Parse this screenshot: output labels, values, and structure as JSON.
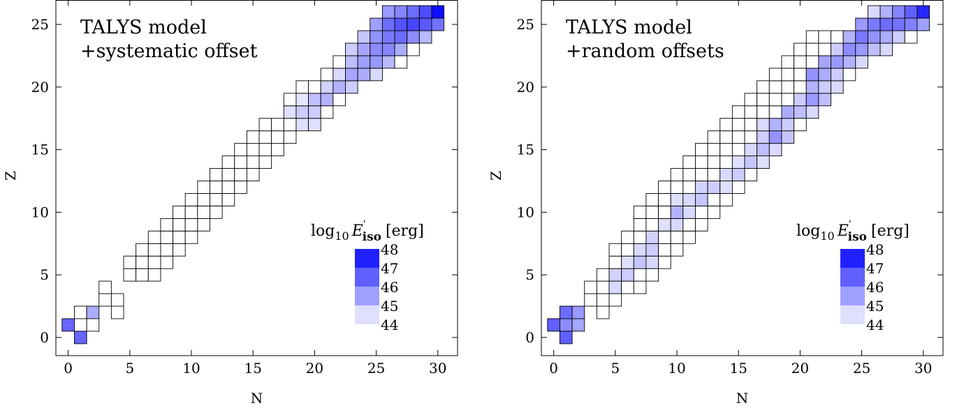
{
  "chart_data": [
    {
      "type": "heatmap",
      "annotations": [
        "TALYS model",
        "+systematic offset"
      ],
      "x_label": "N",
      "y_label": "Z",
      "xlim": [
        -1,
        31.6
      ],
      "ylim": [
        -1.45,
        26.95
      ],
      "xticks": [
        0,
        5,
        10,
        15,
        20,
        25,
        30
      ],
      "yticks": [
        0,
        5,
        10,
        15,
        20,
        25
      ],
      "clim": [
        44,
        48
      ],
      "colorscale": [
        "#ffffff",
        "#0000ff"
      ],
      "colorbar": {
        "label": {
          "base": "log",
          "sub": "10",
          "var": "E",
          "prime": "'",
          "var_sub": "iso",
          "unit": "[erg]"
        },
        "ticks": [
          44,
          45,
          46,
          47,
          48
        ]
      },
      "rows": [
        {
          "z": 0,
          "n": [
            1
          ],
          "values": [
            46.4
          ]
        },
        {
          "z": 1,
          "n": [
            0,
            1,
            2
          ],
          "values": [
            46.4,
            null,
            null
          ]
        },
        {
          "z": 2,
          "n": [
            1,
            2,
            4
          ],
          "values": [
            null,
            45.3,
            null
          ]
        },
        {
          "z": 3,
          "n": [
            3,
            4
          ],
          "values": [
            null,
            null
          ]
        },
        {
          "z": 4,
          "n": [
            3
          ],
          "values": [
            null
          ]
        },
        {
          "z": 5,
          "n": [
            5,
            6,
            7
          ],
          "values": [
            null,
            null,
            null
          ]
        },
        {
          "z": 6,
          "n": [
            5,
            6,
            7,
            8
          ],
          "values": [
            null,
            null,
            null,
            null
          ]
        },
        {
          "z": 7,
          "n": [
            6,
            7,
            8,
            9
          ],
          "values": [
            null,
            null,
            null,
            null
          ]
        },
        {
          "z": 8,
          "n": [
            7,
            8,
            9,
            10
          ],
          "values": [
            null,
            null,
            null,
            null
          ]
        },
        {
          "z": 9,
          "n": [
            8,
            9,
            10,
            11
          ],
          "values": [
            null,
            null,
            null,
            null
          ]
        },
        {
          "z": 10,
          "n": [
            9,
            10,
            11,
            12
          ],
          "values": [
            null,
            null,
            null,
            null
          ]
        },
        {
          "z": 11,
          "n": [
            10,
            11,
            12,
            13
          ],
          "values": [
            null,
            null,
            null,
            null
          ]
        },
        {
          "z": 12,
          "n": [
            11,
            12,
            13,
            14
          ],
          "values": [
            null,
            null,
            null,
            null
          ]
        },
        {
          "z": 13,
          "n": [
            12,
            13,
            14,
            15
          ],
          "values": [
            null,
            null,
            null,
            null
          ]
        },
        {
          "z": 14,
          "n": [
            13,
            14,
            15,
            16
          ],
          "values": [
            null,
            null,
            null,
            null
          ]
        },
        {
          "z": 15,
          "n": [
            14,
            15,
            16,
            17
          ],
          "values": [
            null,
            null,
            null,
            null
          ]
        },
        {
          "z": 16,
          "n": [
            15,
            16,
            17,
            18
          ],
          "values": [
            null,
            null,
            null,
            null
          ]
        },
        {
          "z": 17,
          "n": [
            16,
            17,
            18,
            19,
            20
          ],
          "values": [
            null,
            null,
            null,
            44.5,
            44.5
          ]
        },
        {
          "z": 18,
          "n": [
            18,
            19,
            20,
            21
          ],
          "values": [
            44.5,
            44.8,
            44.8,
            null
          ]
        },
        {
          "z": 19,
          "n": [
            18,
            19,
            20,
            21,
            22
          ],
          "values": [
            null,
            44.4,
            45.0,
            45.2,
            null
          ]
        },
        {
          "z": 20,
          "n": [
            19,
            20,
            21,
            22,
            23
          ],
          "values": [
            null,
            null,
            44.7,
            45.2,
            44.8
          ]
        },
        {
          "z": 21,
          "n": [
            21,
            22,
            23,
            24,
            25
          ],
          "values": [
            null,
            44.6,
            45.4,
            45.3,
            44.6
          ]
        },
        {
          "z": 22,
          "n": [
            22,
            23,
            24,
            25,
            26,
            27
          ],
          "values": [
            null,
            45.0,
            45.5,
            45.6,
            45.1,
            null
          ]
        },
        {
          "z": 23,
          "n": [
            23,
            24,
            25,
            26,
            27,
            28
          ],
          "values": [
            44.8,
            45.4,
            45.8,
            45.9,
            45.3,
            null
          ]
        },
        {
          "z": 24,
          "n": [
            24,
            25,
            26,
            27,
            28,
            29
          ],
          "values": [
            44.9,
            45.7,
            46.1,
            46.3,
            45.8,
            45.1
          ]
        },
        {
          "z": 25,
          "n": [
            25,
            26,
            27,
            28,
            29,
            30
          ],
          "values": [
            45.5,
            46.3,
            46.7,
            46.9,
            46.6,
            46.2
          ]
        },
        {
          "z": 26,
          "n": [
            26,
            27,
            28,
            29,
            30
          ],
          "values": [
            45.6,
            45.9,
            46.3,
            46.8,
            47.8
          ]
        }
      ]
    },
    {
      "type": "heatmap",
      "annotations": [
        "TALYS model",
        "+random offsets"
      ],
      "x_label": "N",
      "y_label": "Z",
      "xlim": [
        -1,
        31.6
      ],
      "ylim": [
        -1.45,
        26.95
      ],
      "xticks": [
        0,
        5,
        10,
        15,
        20,
        25,
        30
      ],
      "yticks": [
        0,
        5,
        10,
        15,
        20,
        25
      ],
      "clim": [
        44,
        48
      ],
      "colorscale": [
        "#ffffff",
        "#0000ff"
      ],
      "colorbar": {
        "label": {
          "base": "log",
          "sub": "10",
          "var": "E",
          "prime": "'",
          "var_sub": "iso",
          "unit": "[erg]"
        },
        "ticks": [
          44,
          45,
          46,
          47,
          48
        ]
      },
      "rows": [
        {
          "z": 0,
          "n": [
            1
          ],
          "values": [
            46.5
          ]
        },
        {
          "z": 1,
          "n": [
            0,
            1,
            2
          ],
          "values": [
            46.5,
            45.8,
            45.4
          ]
        },
        {
          "z": 2,
          "n": [
            1,
            2,
            4
          ],
          "values": [
            46.3,
            45.6,
            null
          ]
        },
        {
          "z": 3,
          "n": [
            3,
            4,
            5
          ],
          "values": [
            null,
            null,
            null
          ]
        },
        {
          "z": 4,
          "n": [
            3,
            4,
            5,
            6,
            7
          ],
          "values": [
            null,
            null,
            44.6,
            null,
            null
          ]
        },
        {
          "z": 5,
          "n": [
            4,
            5,
            6,
            7,
            8
          ],
          "values": [
            null,
            44.7,
            44.8,
            null,
            null
          ]
        },
        {
          "z": 6,
          "n": [
            5,
            6,
            7,
            8,
            9
          ],
          "values": [
            null,
            44.5,
            44.9,
            44.6,
            null
          ]
        },
        {
          "z": 7,
          "n": [
            5,
            6,
            7,
            8,
            9,
            10
          ],
          "values": [
            null,
            null,
            44.6,
            44.8,
            null,
            null
          ]
        },
        {
          "z": 8,
          "n": [
            6,
            7,
            8,
            9,
            10,
            11
          ],
          "values": [
            null,
            null,
            44.7,
            null,
            null,
            null
          ]
        },
        {
          "z": 9,
          "n": [
            7,
            8,
            9,
            10,
            11,
            12
          ],
          "values": [
            null,
            null,
            44.5,
            44.6,
            null,
            null
          ]
        },
        {
          "z": 10,
          "n": [
            7,
            8,
            9,
            10,
            11,
            12,
            13
          ],
          "values": [
            null,
            null,
            null,
            45.2,
            44.6,
            null,
            null
          ]
        },
        {
          "z": 11,
          "n": [
            8,
            9,
            10,
            11,
            12,
            13,
            14
          ],
          "values": [
            null,
            null,
            44.5,
            44.6,
            44.9,
            null,
            null
          ]
        },
        {
          "z": 12,
          "n": [
            9,
            10,
            11,
            12,
            13,
            14,
            15
          ],
          "values": [
            null,
            null,
            null,
            44.7,
            44.8,
            44.5,
            null
          ]
        },
        {
          "z": 13,
          "n": [
            10,
            11,
            12,
            13,
            14,
            15,
            16
          ],
          "values": [
            null,
            null,
            null,
            null,
            44.6,
            44.8,
            null
          ]
        },
        {
          "z": 14,
          "n": [
            11,
            12,
            13,
            14,
            15,
            16,
            17
          ],
          "values": [
            null,
            null,
            null,
            null,
            44.5,
            44.9,
            44.5
          ]
        },
        {
          "z": 15,
          "n": [
            12,
            13,
            14,
            15,
            16,
            17,
            18
          ],
          "values": [
            null,
            null,
            null,
            null,
            44.6,
            45.0,
            44.6
          ]
        },
        {
          "z": 16,
          "n": [
            13,
            14,
            15,
            16,
            17,
            18,
            19
          ],
          "values": [
            null,
            null,
            null,
            null,
            44.8,
            45.7,
            44.9
          ]
        },
        {
          "z": 17,
          "n": [
            14,
            15,
            16,
            17,
            18,
            19,
            20
          ],
          "values": [
            null,
            null,
            null,
            44.6,
            45.2,
            44.8,
            null
          ]
        },
        {
          "z": 18,
          "n": [
            15,
            16,
            17,
            18,
            19,
            20,
            21
          ],
          "values": [
            null,
            null,
            null,
            null,
            45.3,
            45.0,
            44.6
          ]
        },
        {
          "z": 19,
          "n": [
            16,
            17,
            18,
            19,
            20,
            21,
            22
          ],
          "values": [
            null,
            null,
            null,
            null,
            44.8,
            45.6,
            45.0
          ]
        },
        {
          "z": 20,
          "n": [
            17,
            18,
            19,
            20,
            21,
            22,
            23
          ],
          "values": [
            null,
            null,
            null,
            null,
            45.2,
            44.8,
            44.6
          ]
        },
        {
          "z": 21,
          "n": [
            18,
            19,
            20,
            21,
            22,
            23,
            24
          ],
          "values": [
            null,
            null,
            null,
            45.7,
            45.3,
            44.8,
            null
          ]
        },
        {
          "z": 22,
          "n": [
            19,
            20,
            21,
            22,
            23,
            24,
            25
          ],
          "values": [
            null,
            null,
            null,
            45.4,
            45.6,
            45.2,
            44.6
          ]
        },
        {
          "z": 23,
          "n": [
            20,
            21,
            22,
            23,
            24,
            25,
            26,
            27
          ],
          "values": [
            null,
            null,
            null,
            44.8,
            45.8,
            45.6,
            45.0,
            44.6
          ]
        },
        {
          "z": 24,
          "n": [
            21,
            22,
            23,
            24,
            25,
            26,
            27,
            28,
            29
          ],
          "values": [
            null,
            null,
            null,
            45.2,
            46.1,
            45.7,
            45.3,
            44.8,
            null
          ]
        },
        {
          "z": 25,
          "n": [
            25,
            26,
            27,
            28,
            29,
            30
          ],
          "values": [
            45.6,
            46.1,
            46.3,
            46.2,
            46.0,
            45.5
          ]
        },
        {
          "z": 26,
          "n": [
            26,
            27,
            28,
            29,
            30
          ],
          "values": [
            44.6,
            45.2,
            45.9,
            46.5,
            47.4
          ]
        }
      ]
    }
  ]
}
